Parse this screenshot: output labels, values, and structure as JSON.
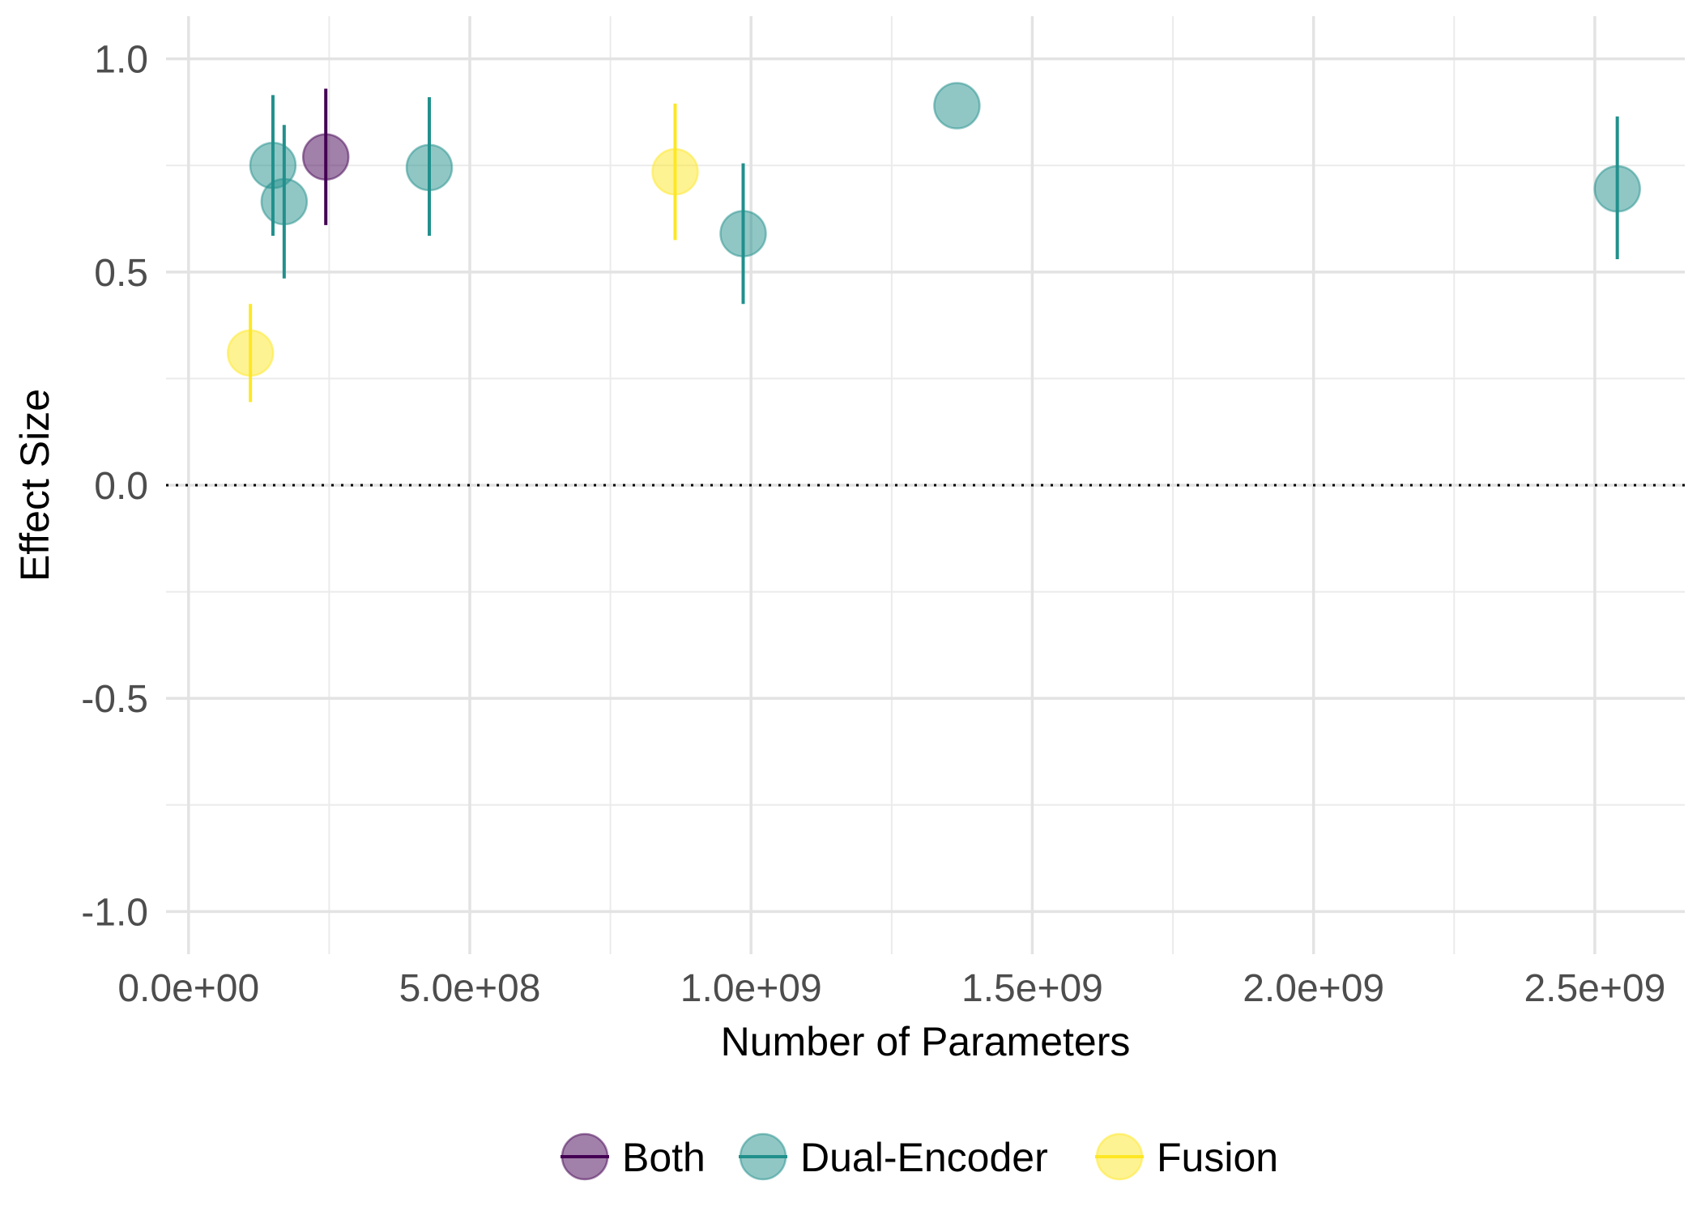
{
  "chart_data": {
    "type": "scatter",
    "title": "",
    "xlabel": "Number of Parameters",
    "ylabel": "Effect Size",
    "xlim": [
      -40000000.0,
      2660000000.0
    ],
    "ylim": [
      -1.1,
      1.1
    ],
    "x_ticks": [
      {
        "value": 0,
        "label": "0.0e+00"
      },
      {
        "value": 500000000,
        "label": "5.0e+08"
      },
      {
        "value": 1000000000,
        "label": "1.0e+09"
      },
      {
        "value": 1500000000,
        "label": "1.5e+09"
      },
      {
        "value": 2000000000,
        "label": "2.0e+09"
      },
      {
        "value": 2500000000,
        "label": "2.5e+09"
      }
    ],
    "y_ticks": [
      {
        "value": 1.0,
        "label": "1.0"
      },
      {
        "value": 0.5,
        "label": "0.5"
      },
      {
        "value": 0.0,
        "label": "0.0"
      },
      {
        "value": -0.5,
        "label": "-0.5"
      },
      {
        "value": -1.0,
        "label": "-1.0"
      }
    ],
    "reference_line": {
      "y": 0,
      "style": "dotted"
    },
    "grid": true,
    "legend_position": "bottom",
    "series": [
      {
        "name": "Both",
        "color": "#440154",
        "points": [
          {
            "x": 244000000,
            "y": 0.77,
            "lo": 0.61,
            "hi": 0.93
          }
        ]
      },
      {
        "name": "Dual-Encoder",
        "color": "#21908C",
        "points": [
          {
            "x": 150000000,
            "y": 0.75,
            "lo": 0.585,
            "hi": 0.915
          },
          {
            "x": 170000000,
            "y": 0.665,
            "lo": 0.485,
            "hi": 0.845
          },
          {
            "x": 428000000,
            "y": 0.745,
            "lo": 0.585,
            "hi": 0.91
          },
          {
            "x": 986000000,
            "y": 0.59,
            "lo": 0.425,
            "hi": 0.755
          },
          {
            "x": 1366000000,
            "y": 0.89,
            "lo": null,
            "hi": null
          },
          {
            "x": 2540000000,
            "y": 0.695,
            "lo": 0.53,
            "hi": 0.865
          }
        ]
      },
      {
        "name": "Fusion",
        "color": "#FDE725",
        "points": [
          {
            "x": 110000000,
            "y": 0.31,
            "lo": 0.195,
            "hi": 0.425
          },
          {
            "x": 865000000,
            "y": 0.735,
            "lo": 0.575,
            "hi": 0.895
          }
        ]
      }
    ]
  }
}
